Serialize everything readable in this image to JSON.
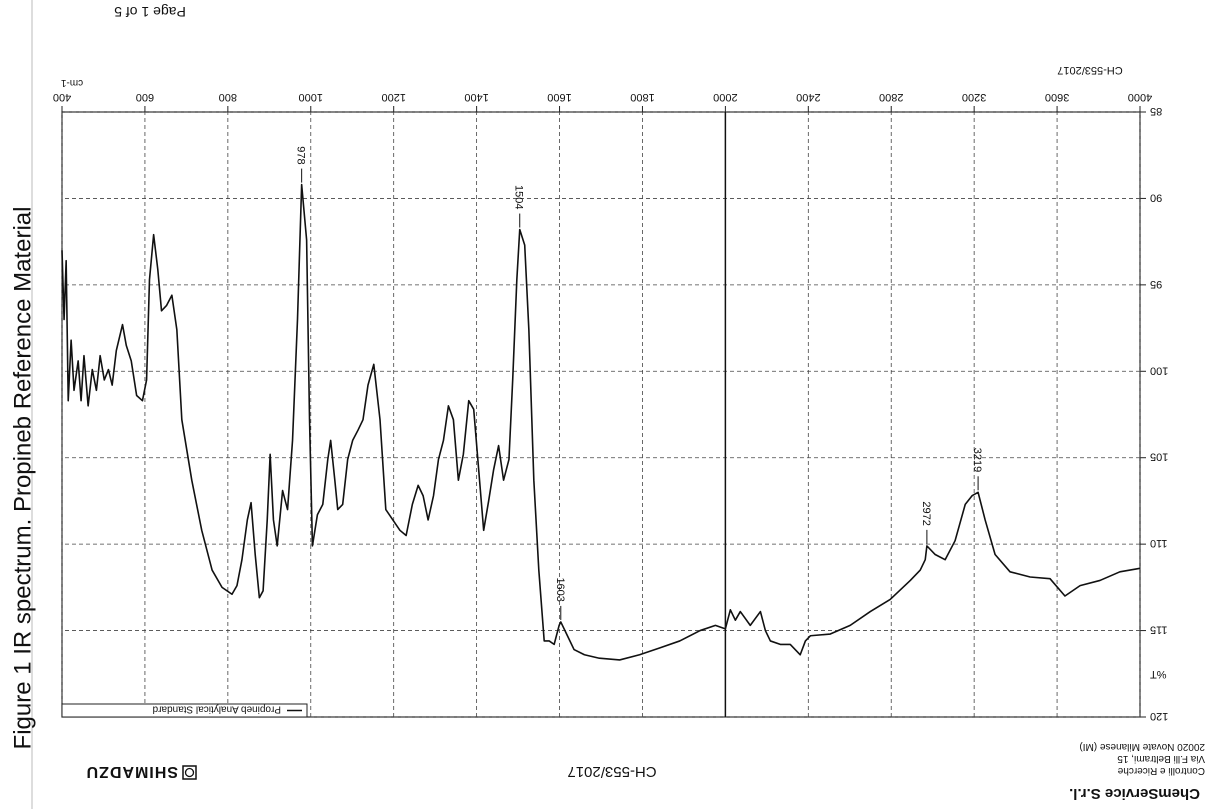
{
  "page": {
    "caption": "Figure 1  IR spectrum. Propineb Reference Material",
    "header": "Page 1 of 5",
    "report_id": "CH-553/2017",
    "brand": "SHIMADZU",
    "company": "ChemService S.r.l.",
    "address": [
      "Controlli e Ricerche",
      "Via F.lli Beltrami, 15",
      "20020 Novate Milanese (MI)"
    ]
  },
  "chart_data": {
    "type": "line",
    "x_label": "cm-1",
    "y_label": "%T",
    "xlim": [
      4000,
      400
    ],
    "x_scale_break": 2000,
    "x_scale_ratio": 2,
    "xticks": [
      4000,
      3600,
      3200,
      2800,
      2400,
      2000,
      1800,
      1600,
      1400,
      1200,
      1000,
      800,
      600,
      400
    ],
    "ylim": [
      85,
      120
    ],
    "yticks": [
      85,
      90,
      95,
      100,
      105,
      110,
      115,
      120
    ],
    "grid": true,
    "legend": "top-right",
    "x": [
      400,
      405,
      410,
      415,
      422,
      429,
      439,
      446,
      453,
      463,
      473,
      483,
      492,
      502,
      512,
      521,
      531,
      546,
      555,
      567,
      580,
      594,
      604,
      611,
      621,
      631,
      640,
      652,
      665,
      677,
      689,
      713,
      737,
      762,
      786,
      810,
      822,
      834,
      847,
      856,
      866,
      876,
      885,
      895,
      902,
      910,
      919,
      932,
      944,
      956,
      968,
      978,
      990,
      997,
      1004,
      1016,
      1029,
      1041,
      1048,
      1058,
      1065,
      1077,
      1089,
      1101,
      1114,
      1126,
      1138,
      1152,
      1167,
      1181,
      1198,
      1215,
      1230,
      1245,
      1259,
      1271,
      1283,
      1296,
      1308,
      1320,
      1332,
      1344,
      1356,
      1368,
      1381,
      1393,
      1405,
      1417,
      1429,
      1441,
      1453,
      1465,
      1478,
      1487,
      1497,
      1504,
      1516,
      1526,
      1538,
      1550,
      1563,
      1575,
      1587,
      1599,
      1603,
      1619,
      1635,
      1660,
      1696,
      1745,
      1793,
      1842,
      1890,
      1939,
      1976,
      2000,
      2024,
      2048,
      2072,
      2120,
      2169,
      2193,
      2217,
      2265,
      2313,
      2361,
      2386,
      2410,
      2506,
      2602,
      2699,
      2795,
      2892,
      2940,
      2964,
      2972,
      3012,
      3060,
      3108,
      3157,
      3190,
      3219,
      3253,
      3301,
      3373,
      3470,
      3566,
      3638,
      3711,
      3807,
      3903,
      4000
    ],
    "series": [
      {
        "name": "Propineb Analytical Standard",
        "color": "#111111",
        "values": [
          93.0,
          97.0,
          93.6,
          101.7,
          98.2,
          101.1,
          99.4,
          101.7,
          99.1,
          102.0,
          99.9,
          101.1,
          99.1,
          100.5,
          99.9,
          100.8,
          98.8,
          97.3,
          98.5,
          99.4,
          101.4,
          101.7,
          100.5,
          94.7,
          92.1,
          94.1,
          96.5,
          96.2,
          95.6,
          97.6,
          102.8,
          106.3,
          109.2,
          111.5,
          112.5,
          112.9,
          112.4,
          110.9,
          108.6,
          107.6,
          110.6,
          113.1,
          112.7,
          108.6,
          104.8,
          108.6,
          110.1,
          106.9,
          108.0,
          104.0,
          97.0,
          89.2,
          92.4,
          102.8,
          110.1,
          108.3,
          107.7,
          105.1,
          104.0,
          106.3,
          108.0,
          107.7,
          105.1,
          104.0,
          103.4,
          102.8,
          100.8,
          99.6,
          102.8,
          108.0,
          108.6,
          109.2,
          109.5,
          107.7,
          106.6,
          107.2,
          108.6,
          107.2,
          105.1,
          104.0,
          102.0,
          102.8,
          106.3,
          104.8,
          101.7,
          102.2,
          105.7,
          109.2,
          107.5,
          105.7,
          104.3,
          106.3,
          105.1,
          100.5,
          94.7,
          91.8,
          92.7,
          97.6,
          106.3,
          111.5,
          115.6,
          115.6,
          115.8,
          114.7,
          114.5,
          115.3,
          116.1,
          116.4,
          116.6,
          116.7,
          116.4,
          116.0,
          115.6,
          115.0,
          114.7,
          114.9,
          113.8,
          114.4,
          113.9,
          114.7,
          113.9,
          115.0,
          115.6,
          115.8,
          115.8,
          116.4,
          115.6,
          115.3,
          115.2,
          114.7,
          113.9,
          113.2,
          112.1,
          111.5,
          110.9,
          110.1,
          110.6,
          110.9,
          109.8,
          107.7,
          107.2,
          107.0,
          108.6,
          110.6,
          111.6,
          111.9,
          112.0,
          113.0,
          112.4,
          112.1,
          111.6,
          111.4
        ]
      }
    ],
    "annotations": [
      {
        "x": 978,
        "y": 89.2,
        "label": "978"
      },
      {
        "x": 1504,
        "y": 91.8,
        "label": "1504"
      },
      {
        "x": 1603,
        "y": 114.5,
        "label": "1603"
      },
      {
        "x": 2972,
        "y": 110.1,
        "label": "2972"
      },
      {
        "x": 3219,
        "y": 107.0,
        "label": "3219"
      }
    ]
  }
}
